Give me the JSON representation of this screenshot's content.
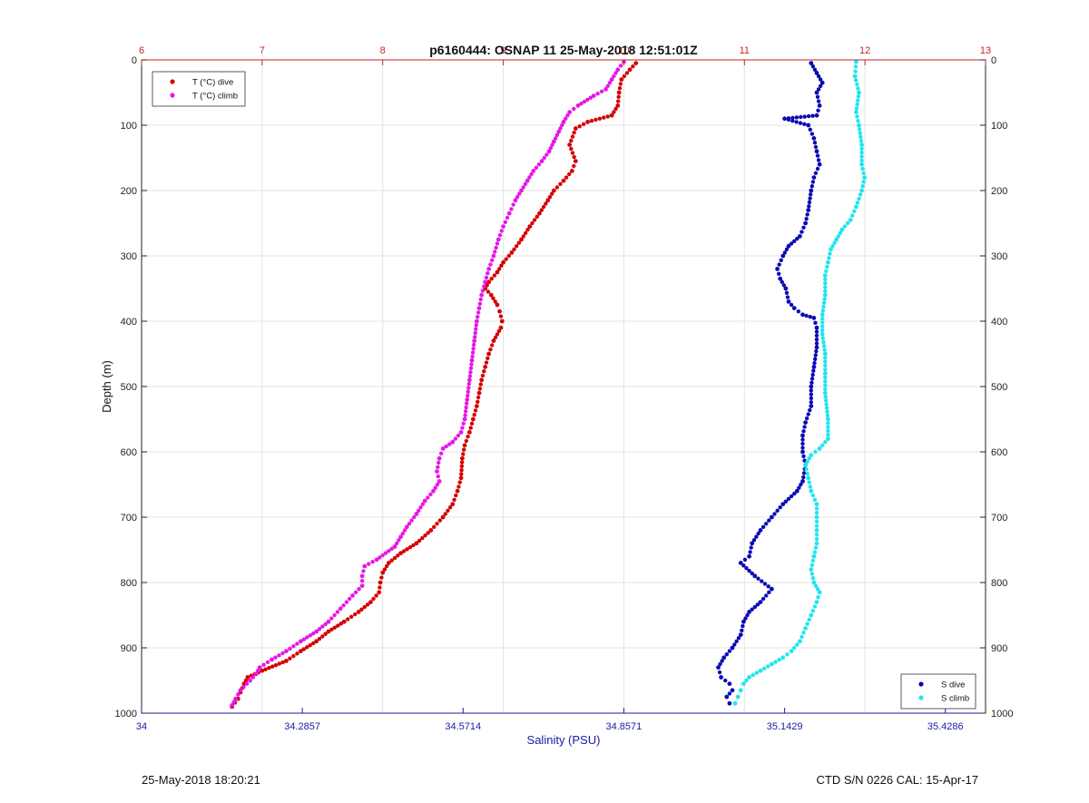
{
  "chart_data": {
    "type": "scatter",
    "title": "p6160444: OSNAP 11 25-May-2018 12:51:01Z",
    "xlabel": "Salinity (PSU)",
    "ylabel": "Depth (m)",
    "x_bottom": {
      "label": "Salinity (PSU)",
      "lim": [
        34,
        35.5
      ],
      "ticks": [
        34,
        34.2857,
        34.5714,
        34.8571,
        35.1429,
        35.4286
      ],
      "tick_labels": [
        "34",
        "34.2857",
        "34.5714",
        "34.8571",
        "35.1429",
        "35.4286"
      ],
      "color": "#1a1aa6"
    },
    "x_top": {
      "label": "",
      "lim": [
        6,
        13
      ],
      "ticks": [
        6,
        7,
        8,
        9,
        10,
        11,
        12,
        13
      ],
      "tick_labels": [
        "6",
        "7",
        "8",
        "9",
        "10",
        "11",
        "12",
        "13"
      ],
      "color": "#cc2222"
    },
    "y": {
      "lim": [
        0,
        1000
      ],
      "reversed": true,
      "ticks": [
        0,
        100,
        200,
        300,
        400,
        500,
        600,
        700,
        800,
        900,
        1000
      ],
      "tick_labels": [
        "0",
        "100",
        "200",
        "300",
        "400",
        "500",
        "600",
        "700",
        "800",
        "900",
        "1000"
      ]
    },
    "grid": true,
    "legend_top_left": [
      "T (°C) dive",
      "T (°C) climb"
    ],
    "legend_bottom_right": [
      "S dive",
      "S climb"
    ],
    "series": [
      {
        "name": "T (°C) dive",
        "axis": "top",
        "color": "#d40000",
        "points": [
          [
            10.1,
            5
          ],
          [
            10.05,
            15
          ],
          [
            9.98,
            30
          ],
          [
            9.96,
            50
          ],
          [
            9.95,
            70
          ],
          [
            9.9,
            85
          ],
          [
            9.7,
            95
          ],
          [
            9.6,
            105
          ],
          [
            9.55,
            130
          ],
          [
            9.6,
            155
          ],
          [
            9.57,
            170
          ],
          [
            9.5,
            185
          ],
          [
            9.42,
            200
          ],
          [
            9.37,
            215
          ],
          [
            9.3,
            235
          ],
          [
            9.22,
            255
          ],
          [
            9.15,
            275
          ],
          [
            9.07,
            295
          ],
          [
            9.0,
            310
          ],
          [
            8.95,
            325
          ],
          [
            8.88,
            340
          ],
          [
            8.85,
            350
          ],
          [
            8.9,
            360
          ],
          [
            8.95,
            375
          ],
          [
            8.97,
            385
          ],
          [
            8.99,
            400
          ],
          [
            8.98,
            410
          ],
          [
            8.92,
            430
          ],
          [
            8.88,
            450
          ],
          [
            8.85,
            470
          ],
          [
            8.82,
            490
          ],
          [
            8.8,
            510
          ],
          [
            8.78,
            530
          ],
          [
            8.75,
            550
          ],
          [
            8.72,
            570
          ],
          [
            8.68,
            590
          ],
          [
            8.66,
            610
          ],
          [
            8.65,
            640
          ],
          [
            8.62,
            660
          ],
          [
            8.58,
            680
          ],
          [
            8.5,
            700
          ],
          [
            8.4,
            720
          ],
          [
            8.28,
            740
          ],
          [
            8.15,
            755
          ],
          [
            8.05,
            770
          ],
          [
            8.0,
            785
          ],
          [
            7.98,
            800
          ],
          [
            7.97,
            815
          ],
          [
            7.9,
            830
          ],
          [
            7.8,
            845
          ],
          [
            7.68,
            860
          ],
          [
            7.55,
            875
          ],
          [
            7.45,
            890
          ],
          [
            7.32,
            905
          ],
          [
            7.2,
            920
          ],
          [
            7.0,
            935
          ],
          [
            6.88,
            945
          ],
          [
            6.85,
            955
          ],
          [
            6.82,
            968
          ],
          [
            6.8,
            978
          ],
          [
            6.75,
            990
          ]
        ]
      },
      {
        "name": "T (°C) climb",
        "axis": "top",
        "color": "#e617e6",
        "points": [
          [
            10.0,
            3
          ],
          [
            9.95,
            15
          ],
          [
            9.9,
            30
          ],
          [
            9.85,
            45
          ],
          [
            9.75,
            55
          ],
          [
            9.62,
            70
          ],
          [
            9.55,
            80
          ],
          [
            9.5,
            95
          ],
          [
            9.46,
            110
          ],
          [
            9.42,
            125
          ],
          [
            9.38,
            140
          ],
          [
            9.32,
            155
          ],
          [
            9.25,
            170
          ],
          [
            9.2,
            185
          ],
          [
            9.15,
            200
          ],
          [
            9.1,
            215
          ],
          [
            9.05,
            235
          ],
          [
            9.0,
            255
          ],
          [
            8.96,
            275
          ],
          [
            8.92,
            300
          ],
          [
            8.88,
            320
          ],
          [
            8.85,
            340
          ],
          [
            8.82,
            360
          ],
          [
            8.8,
            380
          ],
          [
            8.78,
            400
          ],
          [
            8.76,
            430
          ],
          [
            8.74,
            460
          ],
          [
            8.72,
            490
          ],
          [
            8.7,
            520
          ],
          [
            8.68,
            550
          ],
          [
            8.65,
            570
          ],
          [
            8.58,
            585
          ],
          [
            8.5,
            595
          ],
          [
            8.47,
            610
          ],
          [
            8.45,
            630
          ],
          [
            8.47,
            645
          ],
          [
            8.42,
            660
          ],
          [
            8.35,
            675
          ],
          [
            8.28,
            695
          ],
          [
            8.2,
            715
          ],
          [
            8.15,
            730
          ],
          [
            8.1,
            745
          ],
          [
            7.95,
            765
          ],
          [
            7.85,
            775
          ],
          [
            7.83,
            790
          ],
          [
            7.83,
            805
          ],
          [
            7.75,
            820
          ],
          [
            7.65,
            840
          ],
          [
            7.55,
            860
          ],
          [
            7.45,
            875
          ],
          [
            7.32,
            890
          ],
          [
            7.2,
            905
          ],
          [
            7.08,
            918
          ],
          [
            6.98,
            930
          ],
          [
            6.95,
            940
          ],
          [
            6.9,
            950
          ],
          [
            6.82,
            965
          ],
          [
            6.78,
            978
          ],
          [
            6.75,
            988
          ]
        ]
      },
      {
        "name": "S dive",
        "axis": "bottom",
        "color": "#0a0ab4",
        "points": [
          [
            35.19,
            5
          ],
          [
            35.2,
            20
          ],
          [
            35.21,
            35
          ],
          [
            35.2,
            50
          ],
          [
            35.205,
            70
          ],
          [
            35.2,
            85
          ],
          [
            35.1429,
            90
          ],
          [
            35.185,
            100
          ],
          [
            35.195,
            120
          ],
          [
            35.2,
            140
          ],
          [
            35.205,
            160
          ],
          [
            35.195,
            180
          ],
          [
            35.19,
            200
          ],
          [
            35.185,
            230
          ],
          [
            35.18,
            250
          ],
          [
            35.17,
            270
          ],
          [
            35.15,
            285
          ],
          [
            35.14,
            300
          ],
          [
            35.13,
            320
          ],
          [
            35.135,
            335
          ],
          [
            35.145,
            350
          ],
          [
            35.15,
            370
          ],
          [
            35.16,
            380
          ],
          [
            35.175,
            390
          ],
          [
            35.195,
            395
          ],
          [
            35.2,
            410
          ],
          [
            35.2,
            440
          ],
          [
            35.195,
            470
          ],
          [
            35.19,
            500
          ],
          [
            35.19,
            530
          ],
          [
            35.18,
            555
          ],
          [
            35.175,
            575
          ],
          [
            35.175,
            600
          ],
          [
            35.18,
            620
          ],
          [
            35.175,
            645
          ],
          [
            35.165,
            660
          ],
          [
            35.14,
            680
          ],
          [
            35.12,
            700
          ],
          [
            35.1,
            720
          ],
          [
            35.085,
            740
          ],
          [
            35.08,
            760
          ],
          [
            35.065,
            770
          ],
          [
            35.09,
            790
          ],
          [
            35.12,
            810
          ],
          [
            35.1,
            830
          ],
          [
            35.08,
            845
          ],
          [
            35.07,
            860
          ],
          [
            35.065,
            880
          ],
          [
            35.05,
            900
          ],
          [
            35.035,
            915
          ],
          [
            35.025,
            930
          ],
          [
            35.03,
            945
          ],
          [
            35.045,
            955
          ],
          [
            35.05,
            965
          ],
          [
            35.04,
            975
          ],
          [
            35.045,
            985
          ]
        ]
      },
      {
        "name": "S climb",
        "axis": "bottom",
        "color": "#1ee6f0",
        "points": [
          [
            35.27,
            3
          ],
          [
            35.268,
            25
          ],
          [
            35.275,
            50
          ],
          [
            35.27,
            80
          ],
          [
            35.275,
            100
          ],
          [
            35.28,
            130
          ],
          [
            35.28,
            160
          ],
          [
            35.285,
            180
          ],
          [
            35.28,
            200
          ],
          [
            35.27,
            225
          ],
          [
            35.26,
            245
          ],
          [
            35.245,
            260
          ],
          [
            35.235,
            275
          ],
          [
            35.225,
            290
          ],
          [
            35.22,
            310
          ],
          [
            35.215,
            330
          ],
          [
            35.215,
            360
          ],
          [
            35.21,
            390
          ],
          [
            35.21,
            420
          ],
          [
            35.215,
            450
          ],
          [
            35.215,
            480
          ],
          [
            35.215,
            510
          ],
          [
            35.22,
            550
          ],
          [
            35.22,
            580
          ],
          [
            35.205,
            595
          ],
          [
            35.19,
            605
          ],
          [
            35.18,
            620
          ],
          [
            35.185,
            640
          ],
          [
            35.19,
            660
          ],
          [
            35.2,
            680
          ],
          [
            35.2,
            700
          ],
          [
            35.2,
            720
          ],
          [
            35.2,
            740
          ],
          [
            35.195,
            760
          ],
          [
            35.19,
            780
          ],
          [
            35.195,
            800
          ],
          [
            35.205,
            815
          ],
          [
            35.2,
            830
          ],
          [
            35.19,
            850
          ],
          [
            35.18,
            870
          ],
          [
            35.17,
            890
          ],
          [
            35.155,
            905
          ],
          [
            35.14,
            915
          ],
          [
            35.12,
            925
          ],
          [
            35.1,
            935
          ],
          [
            35.08,
            945
          ],
          [
            35.07,
            955
          ],
          [
            35.065,
            965
          ],
          [
            35.06,
            975
          ],
          [
            35.055,
            985
          ]
        ]
      }
    ]
  },
  "footer": {
    "date": "25-May-2018 18:20:21",
    "ctd": "CTD S/N 0226  CAL: 15-Apr-17"
  }
}
